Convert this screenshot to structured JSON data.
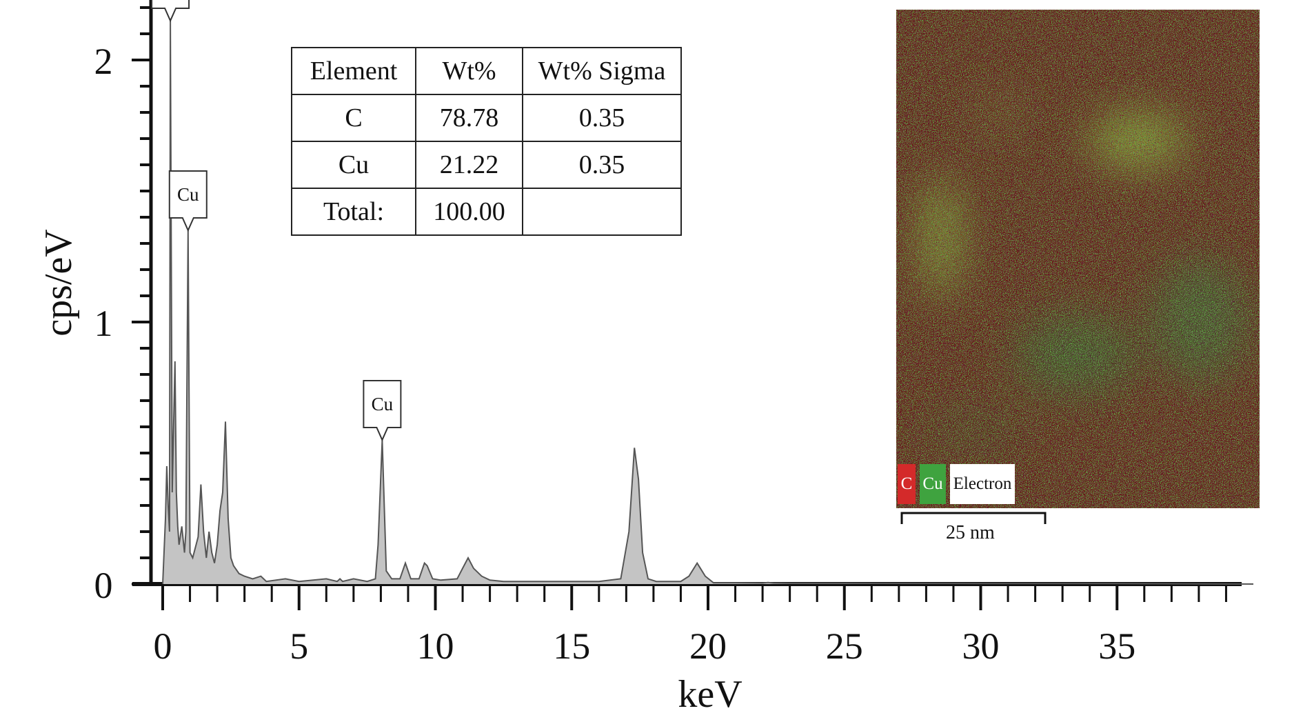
{
  "chart_data": {
    "type": "line",
    "xlabel": "keV",
    "ylabel": "cps/eV",
    "xlim": [
      0,
      40
    ],
    "ylim": [
      0,
      2.2
    ],
    "x_ticks": [
      0,
      5,
      10,
      15,
      20,
      25,
      30,
      35
    ],
    "y_ticks": [
      0,
      1,
      2
    ],
    "grid": false,
    "spectrum": {
      "x": [
        0.0,
        0.1,
        0.15,
        0.2,
        0.25,
        0.28,
        0.35,
        0.45,
        0.5,
        0.55,
        0.6,
        0.7,
        0.8,
        0.85,
        0.93,
        1.0,
        1.1,
        1.3,
        1.4,
        1.5,
        1.6,
        1.7,
        1.8,
        1.9,
        2.0,
        2.1,
        2.2,
        2.3,
        2.4,
        2.5,
        2.6,
        2.8,
        3.0,
        3.3,
        3.6,
        3.7,
        3.8,
        4.5,
        5.0,
        6.0,
        6.4,
        6.5,
        6.6,
        7.0,
        7.5,
        7.8,
        7.9,
        8.05,
        8.2,
        8.4,
        8.7,
        8.9,
        9.1,
        9.4,
        9.6,
        9.7,
        9.9,
        10.2,
        10.8,
        11.0,
        11.2,
        11.4,
        11.7,
        12.0,
        12.5,
        13.0,
        14.0,
        15.0,
        16.0,
        16.8,
        17.1,
        17.3,
        17.45,
        17.6,
        17.8,
        18.1,
        19.0,
        19.3,
        19.6,
        19.9,
        20.2,
        21.0,
        22.0,
        22.2,
        22.4,
        23.0,
        25.0,
        30.0,
        35.0,
        40.0
      ],
      "y": [
        0.0,
        0.25,
        0.45,
        0.3,
        0.2,
        2.15,
        0.35,
        0.85,
        0.35,
        0.22,
        0.15,
        0.22,
        0.12,
        0.2,
        1.35,
        0.12,
        0.1,
        0.18,
        0.38,
        0.2,
        0.1,
        0.2,
        0.12,
        0.08,
        0.15,
        0.28,
        0.35,
        0.62,
        0.25,
        0.1,
        0.07,
        0.04,
        0.03,
        0.02,
        0.03,
        0.02,
        0.01,
        0.02,
        0.01,
        0.02,
        0.01,
        0.02,
        0.01,
        0.02,
        0.01,
        0.02,
        0.15,
        0.55,
        0.05,
        0.02,
        0.02,
        0.08,
        0.02,
        0.02,
        0.08,
        0.07,
        0.02,
        0.015,
        0.02,
        0.06,
        0.1,
        0.06,
        0.03,
        0.015,
        0.01,
        0.01,
        0.01,
        0.01,
        0.01,
        0.02,
        0.2,
        0.52,
        0.4,
        0.12,
        0.02,
        0.01,
        0.01,
        0.03,
        0.08,
        0.03,
        0.005,
        0.005,
        0.004,
        0.006,
        0.004,
        0.003,
        0.003,
        0.002,
        0.002,
        0.0
      ]
    },
    "peak_labels": [
      {
        "label": "C",
        "x": 0.28,
        "y": 2.15
      },
      {
        "label": "Cu",
        "x": 0.93,
        "y": 1.35
      },
      {
        "label": "Cu",
        "x": 8.05,
        "y": 0.55
      }
    ],
    "table": {
      "headers": [
        "Element",
        "Wt%",
        "Wt% Sigma"
      ],
      "rows": [
        [
          "C",
          "78.78",
          "0.35"
        ],
        [
          "Cu",
          "21.22",
          "0.35"
        ],
        [
          "Total:",
          "100.00",
          ""
        ]
      ]
    },
    "map_inset": {
      "legend": [
        "C",
        "Cu",
        "Electron"
      ],
      "scale_bar": "25 nm",
      "colors": {
        "C": "#d42a2a",
        "Cu": "#3fa33f",
        "background": "#6b1414"
      }
    }
  }
}
